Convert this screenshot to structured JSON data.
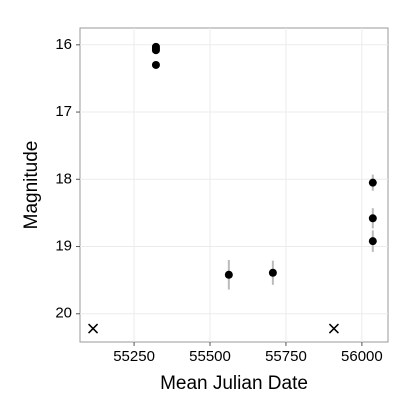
{
  "chart_data": {
    "type": "scatter",
    "x_label": "Mean Julian Date",
    "y_label": "Magnitude",
    "xlim": [
      55072,
      56086
    ],
    "xticks": [
      55250,
      55500,
      55750,
      56000
    ],
    "ylim": [
      20.42,
      15.75
    ],
    "yticks": [
      16,
      17,
      18,
      19,
      20
    ],
    "grid": true,
    "series": [
      {
        "marker": "circle",
        "color": "#000000",
        "error_color": "#bbbbbb",
        "x": [
          55322,
          55322,
          55322,
          55322,
          55562,
          55707,
          56036,
          56036,
          56036
        ],
        "values": [
          16.03,
          16.06,
          16.08,
          16.3,
          19.42,
          19.39,
          18.05,
          18.58,
          18.92
        ],
        "errors": [
          0.03,
          0.03,
          0.03,
          0.03,
          0.22,
          0.18,
          0.12,
          0.15,
          0.16
        ]
      },
      {
        "marker": "cross",
        "color": "#000000",
        "x": [
          55115,
          55908
        ],
        "values": [
          20.22,
          20.22
        ]
      }
    ]
  }
}
